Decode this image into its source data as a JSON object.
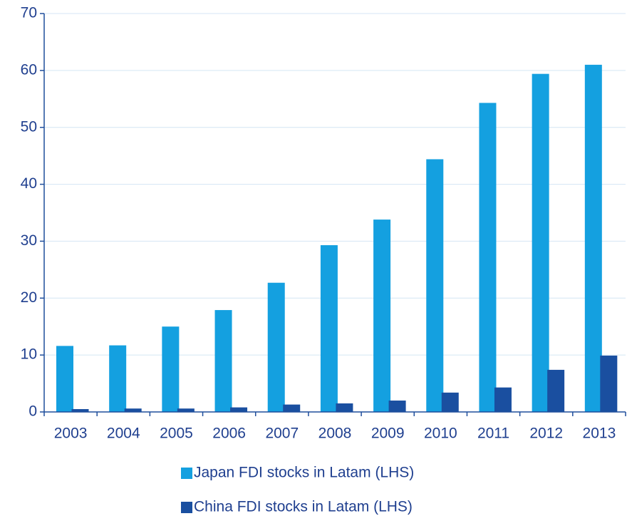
{
  "chart_data": {
    "type": "bar",
    "categories": [
      "2003",
      "2004",
      "2005",
      "2006",
      "2007",
      "2008",
      "2009",
      "2010",
      "2011",
      "2012",
      "2013"
    ],
    "series": [
      {
        "name": "Japan FDI stocks in Latam (LHS)",
        "color": "#14a0e0",
        "values": [
          11.6,
          11.7,
          15.0,
          17.9,
          22.7,
          29.3,
          33.8,
          44.4,
          54.3,
          59.4,
          61.0
        ]
      },
      {
        "name": "China FDI stocks in Latam (LHS)",
        "color": "#1a4fa0",
        "values": [
          0.5,
          0.6,
          0.6,
          0.8,
          1.3,
          1.5,
          2.0,
          3.4,
          4.3,
          7.4,
          9.9
        ]
      }
    ],
    "ylim": [
      0,
      70
    ],
    "yticks": [
      0,
      10,
      20,
      30,
      40,
      50,
      60,
      70
    ],
    "grid": true
  }
}
